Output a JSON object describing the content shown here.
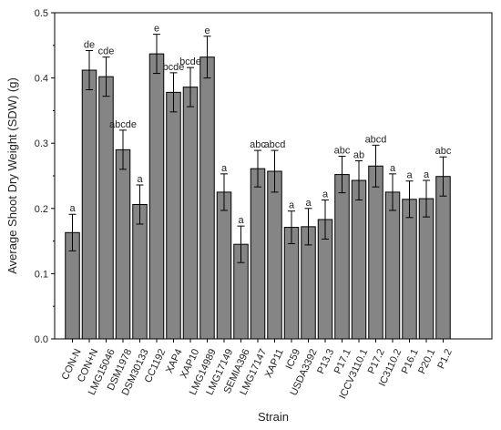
{
  "chart_data": {
    "type": "bar",
    "title": "",
    "xlabel": "Strain",
    "ylabel": "Average Shoot Dry Weight (SDW) (g)",
    "ylim": [
      0,
      0.5
    ],
    "yticks": [
      "0.0",
      "0.1",
      "0.2",
      "0.3",
      "0.4",
      "0.5"
    ],
    "ytick_values": [
      0.0,
      0.1,
      0.2,
      0.3,
      0.4,
      0.5
    ],
    "grid": false,
    "legend": "none",
    "bar_color": "#858585",
    "categories": [
      "CON-N",
      "CON+N",
      "LMG15046",
      "DSM1978",
      "DSM30133",
      "CC1192",
      "XAP4",
      "XAP10",
      "LMG14989",
      "LMG17149",
      "SEMIA396",
      "LMG17147",
      "XAP11",
      "IC59",
      "USDA3392",
      "P13.3",
      "P17.1",
      "ICCV3110.1",
      "P17.2",
      "IC3110.2",
      "P16.1",
      "P20.1",
      "P1.2"
    ],
    "values": [
      0.163,
      0.412,
      0.402,
      0.29,
      0.206,
      0.437,
      0.378,
      0.386,
      0.432,
      0.225,
      0.145,
      0.261,
      0.257,
      0.171,
      0.172,
      0.183,
      0.252,
      0.243,
      0.265,
      0.225,
      0.214,
      0.215,
      0.249
    ],
    "errors": [
      0.028,
      0.03,
      0.03,
      0.03,
      0.03,
      0.03,
      0.03,
      0.03,
      0.032,
      0.028,
      0.028,
      0.028,
      0.032,
      0.025,
      0.028,
      0.03,
      0.028,
      0.03,
      0.032,
      0.028,
      0.028,
      0.028,
      0.03
    ],
    "significance_labels": [
      "a",
      "de",
      "cde",
      "abcde",
      "a",
      "e",
      "bcde",
      "bcde",
      "e",
      "a",
      "a",
      "abc",
      "abcd",
      "a",
      "a",
      "a",
      "abc",
      "ab",
      "abcd",
      "a",
      "a",
      "a",
      "abc"
    ]
  }
}
